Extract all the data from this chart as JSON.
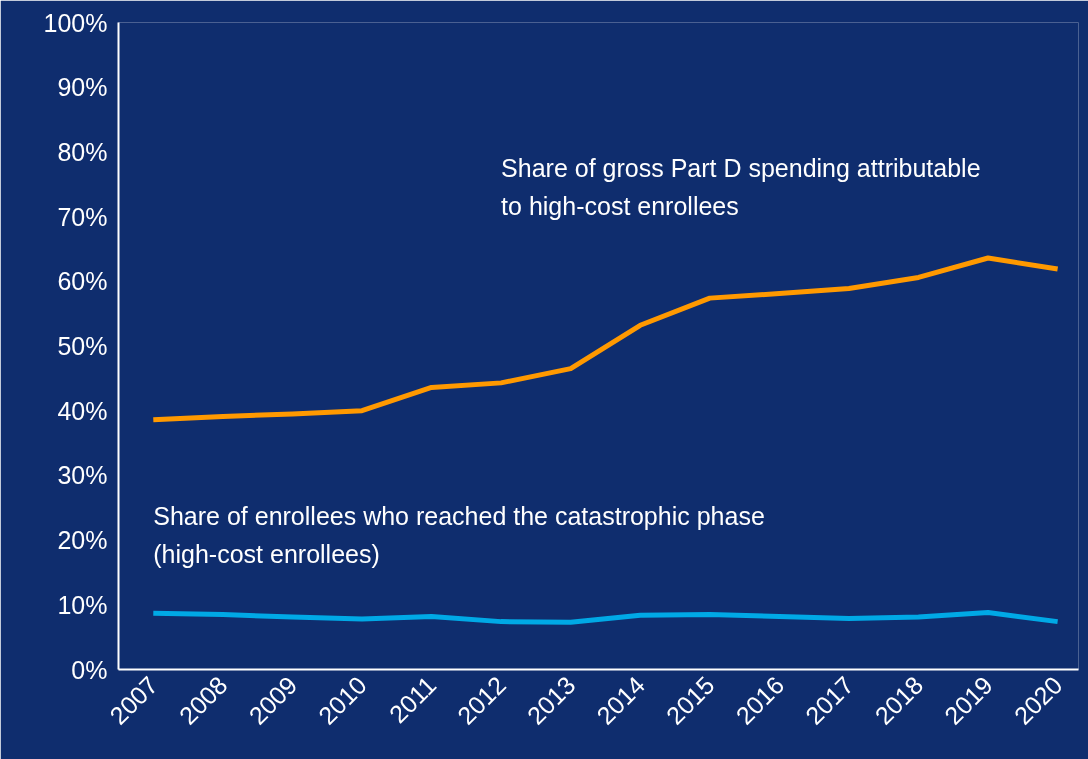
{
  "chart_data": {
    "type": "line",
    "categories": [
      "2007",
      "2008",
      "2009",
      "2010",
      "2011",
      "2012",
      "2013",
      "2014",
      "2015",
      "2016",
      "2017",
      "2018",
      "2019",
      "2020"
    ],
    "series": [
      {
        "name": "Share of gross Part D spending attributable\nto high-cost enrollees",
        "color": "#ff9900",
        "values": [
          38.6,
          39.1,
          39.5,
          40.0,
          43.6,
          44.3,
          46.5,
          53.2,
          57.4,
          58.1,
          58.9,
          60.6,
          63.6,
          61.9
        ]
      },
      {
        "name": "Share of enrollees who reached the catastrophic phase\n(high-cost enrollees)",
        "color": "#00a9e6",
        "values": [
          8.7,
          8.5,
          8.1,
          7.8,
          8.2,
          7.4,
          7.3,
          8.4,
          8.5,
          8.2,
          7.9,
          8.1,
          8.8,
          7.4
        ]
      }
    ],
    "ylim": [
      0,
      100
    ],
    "yticks": [
      {
        "value": 0,
        "label": "0%"
      },
      {
        "value": 10,
        "label": "10%"
      },
      {
        "value": 20,
        "label": "20%"
      },
      {
        "value": 30,
        "label": "30%"
      },
      {
        "value": 40,
        "label": "40%"
      },
      {
        "value": 50,
        "label": "50%"
      },
      {
        "value": 60,
        "label": "60%"
      },
      {
        "value": 70,
        "label": "70%"
      },
      {
        "value": 80,
        "label": "80%"
      },
      {
        "value": 90,
        "label": "90%"
      },
      {
        "value": 100,
        "label": "100%"
      }
    ],
    "line_style": "solid"
  }
}
